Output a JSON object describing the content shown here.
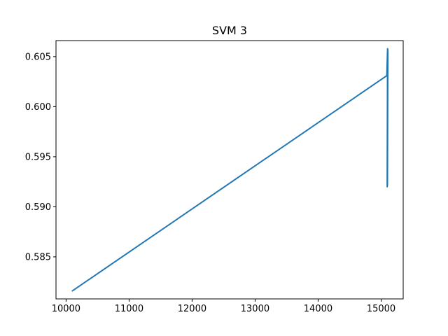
{
  "chart_data": {
    "type": "line",
    "title": "SVM 3",
    "xlabel": "",
    "ylabel": "",
    "xlim": [
      9840,
      15350
    ],
    "ylim": [
      0.5808,
      0.6066
    ],
    "x_ticks": [
      10000,
      11000,
      12000,
      13000,
      14000,
      15000
    ],
    "x_tick_labels": [
      "10000",
      "11000",
      "12000",
      "13000",
      "14000",
      "15000"
    ],
    "y_ticks": [
      0.585,
      0.59,
      0.595,
      0.6,
      0.605
    ],
    "y_tick_labels": [
      "0.585",
      "0.590",
      "0.595",
      "0.600",
      "0.605"
    ],
    "grid": false,
    "legend": false,
    "line_color": "#1f77b4",
    "series": [
      {
        "x": [
          10100,
          15090,
          15102,
          15096,
          15104,
          15098,
          15106,
          15100,
          15103,
          15097,
          15105,
          15099,
          15104
        ],
        "y": [
          0.5816,
          0.6031,
          0.6058,
          0.592,
          0.6052,
          0.5925,
          0.6055,
          0.5922,
          0.6048,
          0.593,
          0.6057,
          0.5921,
          0.6045
        ]
      }
    ]
  }
}
